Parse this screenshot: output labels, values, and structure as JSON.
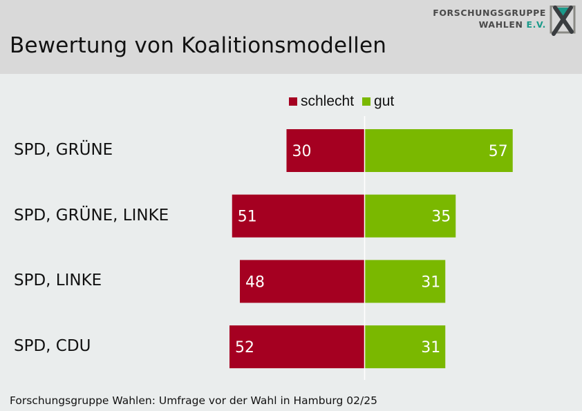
{
  "header": {
    "title": "Bewertung von Koalitionsmodellen",
    "logo": {
      "line1": "FORSCHUNGSGRUPPE",
      "line2_main": "WAHLEN",
      "line2_suffix": "E.V.",
      "icon": "fgw-x-logo-icon"
    }
  },
  "colors": {
    "schlecht": "#a50021",
    "gut": "#7ab800",
    "header_bg": "#d9d9d9",
    "body_bg": "#eaeded",
    "logo_accent": "#1a9a8a"
  },
  "chart_data": {
    "type": "bar",
    "orientation": "horizontal-diverging",
    "title": "Bewertung von Koalitionsmodellen",
    "categories": [
      "SPD, GRÜNE",
      "SPD, GRÜNE, LINKE",
      "SPD, LINKE",
      "SPD, CDU"
    ],
    "series": [
      {
        "name": "schlecht",
        "values": [
          30,
          51,
          48,
          52
        ],
        "direction": "left"
      },
      {
        "name": "gut",
        "values": [
          57,
          35,
          31,
          31
        ],
        "direction": "right"
      }
    ],
    "legend": {
      "entries": [
        "schlecht",
        "gut"
      ],
      "placement": "top-center"
    },
    "xlabel": "",
    "ylabel": "",
    "unit": "percent",
    "grid": false
  },
  "footer": {
    "source": "Forschungsgruppe Wahlen: Umfrage vor der Wahl in Hamburg 02/25"
  }
}
